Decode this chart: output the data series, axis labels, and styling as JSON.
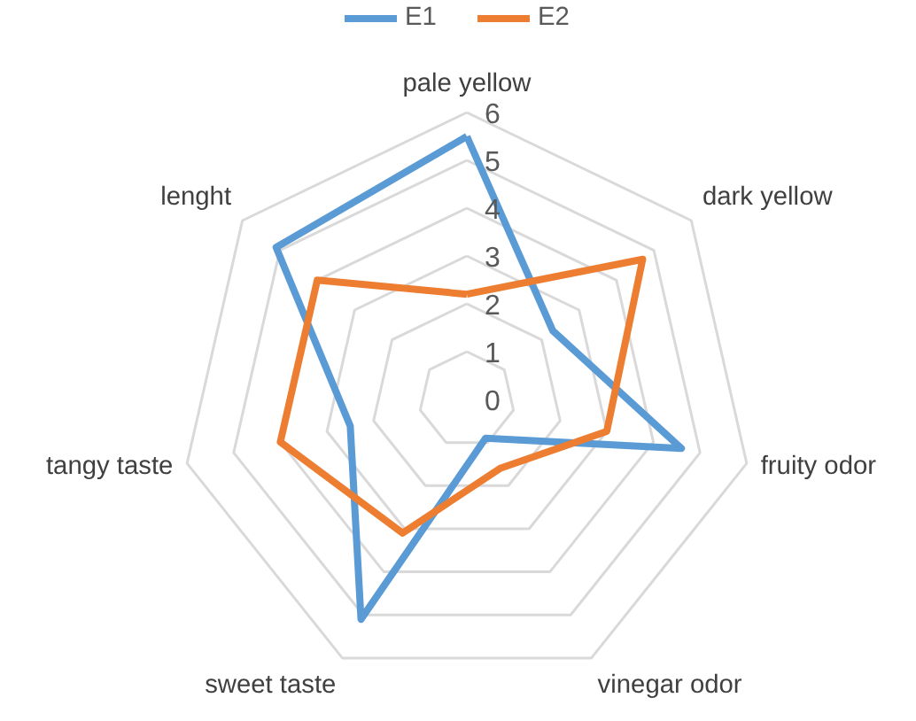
{
  "chart_data": {
    "type": "radar",
    "categories": [
      "pale yellow",
      "dark yellow",
      "fruity odor",
      "vinegar odor",
      "sweet taste",
      "tangy taste",
      "lenght"
    ],
    "series": [
      {
        "name": "E1",
        "color": "#5b9bd5",
        "values": [
          5.5,
          2.3,
          4.6,
          0.9,
          5.1,
          2.5,
          5.1
        ]
      },
      {
        "name": "E2",
        "color": "#ed7d31",
        "values": [
          2.2,
          4.7,
          3.0,
          1.6,
          3.1,
          4.0,
          4.0
        ]
      }
    ],
    "ylim": [
      0,
      6
    ],
    "yticks": [
      0,
      1,
      2,
      3,
      4,
      5,
      6
    ],
    "grid": true,
    "legend": "top",
    "marker": "none"
  }
}
